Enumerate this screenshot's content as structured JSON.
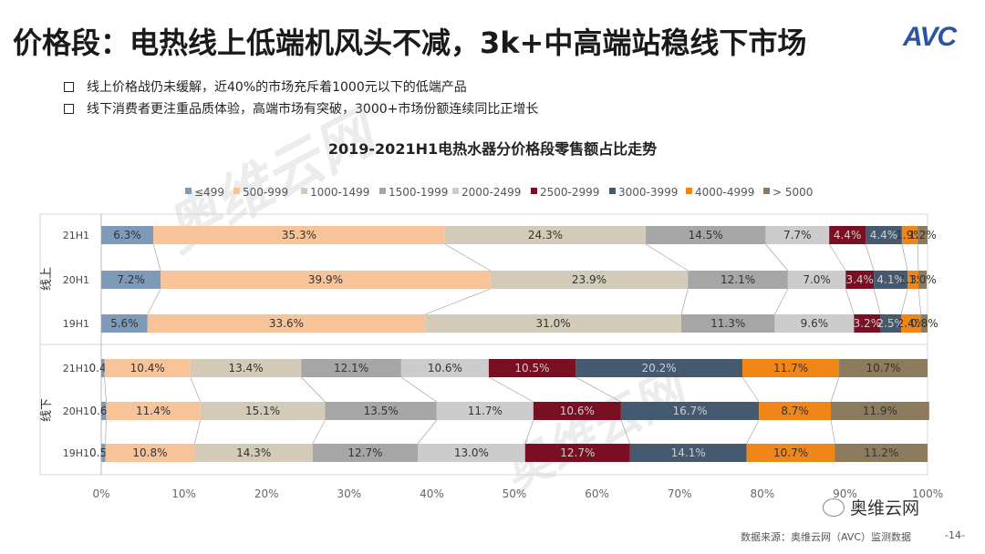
{
  "title": "价格段：电热线上低端机风头不减，3k+中高端站稳线下市场",
  "logo_text": "AVC",
  "bullets": [
    "线上价格战仍未缓解，近40%的市场充斥着1000元以下的低端产品",
    "线下消费者更注重品质体验，高端市场有突破，3000+市场份额连续同比正增长"
  ],
  "watermark": "奥维云网",
  "wechat_label": "奥维云网",
  "source": "数据来源：奥维云网（AVC）监测数据",
  "page_number": "-14-",
  "chart_data": {
    "type": "bar",
    "orientation": "horizontal-stacked-100",
    "title": "2019-2021H1电热水器分价格段零售额占比走势",
    "legend_position": "top",
    "series": [
      {
        "name": "≤499",
        "color": "#7d9ab8"
      },
      {
        "name": "500-999",
        "color": "#f7c49a"
      },
      {
        "name": "1000-1499",
        "color": "#d3cbb8"
      },
      {
        "name": "1500-1999",
        "color": "#a6a6a6"
      },
      {
        "name": "2000-2499",
        "color": "#cccccc"
      },
      {
        "name": "2500-2999",
        "color": "#7a0f23"
      },
      {
        "name": "3000-3999",
        "color": "#455a6f"
      },
      {
        "name": "4000-4999",
        "color": "#f08518"
      },
      {
        "name": "> 5000",
        "color": "#8c7b5c"
      }
    ],
    "groups": [
      {
        "name": "线上",
        "rows": [
          {
            "label": "21H1",
            "values": [
              6.3,
              35.3,
              24.3,
              14.5,
              7.7,
              4.4,
              4.4,
              1.9,
              1.2
            ],
            "labels": [
              "6.3%",
              "35.3%",
              "24.3%",
              "14.5%",
              "7.7%",
              "4.4%",
              "4.4%",
              "1.9%",
              "1.2%"
            ]
          },
          {
            "label": "20H1",
            "values": [
              7.2,
              39.9,
              23.9,
              12.1,
              7.0,
              3.4,
              4.1,
              1.3,
              1.0
            ],
            "labels": [
              "7.2%",
              "39.9%",
              "23.9%",
              "12.1%",
              "7.0%",
              "3.4%",
              "4.1%",
              "1.3%",
              "1.0%"
            ]
          },
          {
            "label": "19H1",
            "values": [
              5.6,
              33.6,
              31.0,
              11.3,
              9.6,
              3.2,
              2.5,
              2.4,
              0.8
            ],
            "labels": [
              "5.6%",
              "33.6%",
              "31.0%",
              "11.3%",
              "9.6%",
              "3.2%",
              "2.5%",
              "2.4%",
              "0.8%"
            ]
          }
        ]
      },
      {
        "name": "线下",
        "rows": [
          {
            "label": "21H1",
            "values": [
              0.4,
              10.4,
              13.4,
              12.1,
              10.6,
              10.5,
              20.2,
              11.7,
              10.7
            ],
            "labels": [
              "0.4%",
              "10.4%",
              "13.4%",
              "12.1%",
              "10.6%",
              "10.5%",
              "20.2%",
              "11.7%",
              "10.7%"
            ]
          },
          {
            "label": "20H1",
            "values": [
              0.6,
              11.4,
              15.1,
              13.5,
              11.7,
              10.6,
              16.7,
              8.7,
              11.9
            ],
            "labels": [
              "0.6%",
              "11.4%",
              "15.1%",
              "13.5%",
              "11.7%",
              "10.6%",
              "16.7%",
              "8.7%",
              "11.9%"
            ]
          },
          {
            "label": "19H1",
            "values": [
              0.5,
              10.8,
              14.3,
              12.7,
              13.0,
              12.7,
              14.1,
              10.7,
              11.2
            ],
            "labels": [
              "0.5%",
              "10.8%",
              "14.3%",
              "12.7%",
              "13.0%",
              "12.7%",
              "14.1%",
              "10.7%",
              "11.2%"
            ]
          }
        ]
      }
    ],
    "x_ticks": [
      "0%",
      "10%",
      "20%",
      "30%",
      "40%",
      "50%",
      "60%",
      "70%",
      "80%",
      "90%",
      "100%"
    ],
    "xlim": [
      0,
      100
    ]
  }
}
